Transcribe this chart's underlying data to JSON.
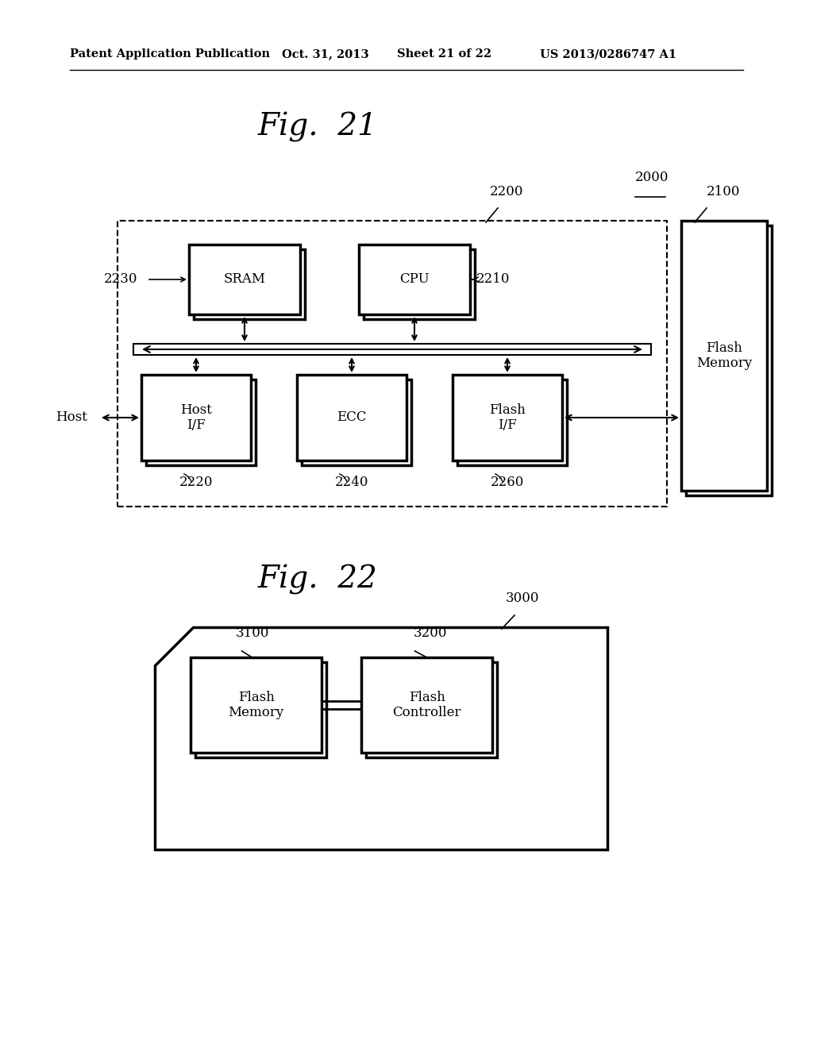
{
  "bg_color": "#ffffff",
  "header_text": "Patent Application Publication",
  "header_date": "Oct. 31, 2013",
  "header_sheet": "Sheet 21 of 22",
  "header_patent": "US 2013/0286747 A1",
  "fig21_title": "Fig.  21",
  "fig22_title": "Fig.  22",
  "label_2000": "2000",
  "label_2100": "2100",
  "label_2200": "2200",
  "label_2210": "2210",
  "label_2220": "2220",
  "label_2230": "2230",
  "label_2240": "2240",
  "label_2260": "2260",
  "label_3000": "3000",
  "label_3100": "3100",
  "label_3200": "3200",
  "text_sram": "SRAM",
  "text_cpu": "CPU",
  "text_host_if": "Host\nI/F",
  "text_ecc": "ECC",
  "text_flash_if": "Flash\nI/F",
  "text_flash_memory": "Flash\nMemory",
  "text_host": "Host",
  "text_flash_memory2": "Flash\nMemory",
  "text_flash_controller": "Flash\nController"
}
